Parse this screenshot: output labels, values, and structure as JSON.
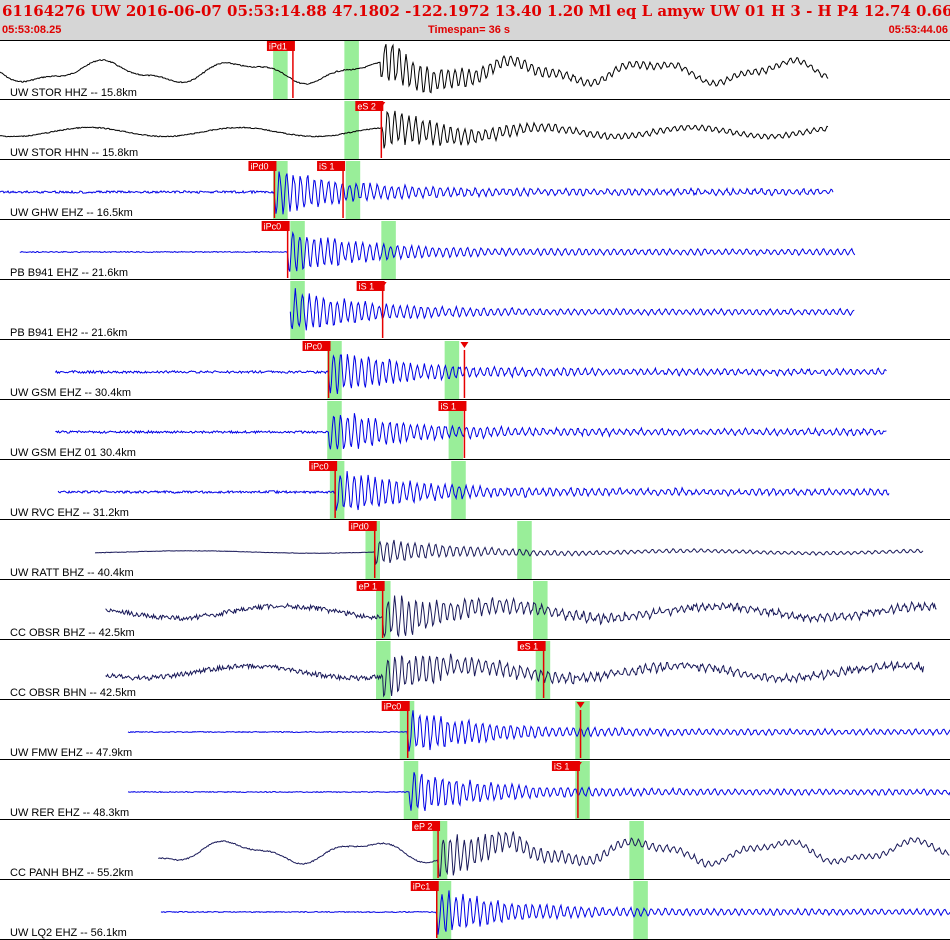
{
  "header": {
    "title": "61164276 UW 2016-06-07 05:53:14.88   47.1802 -122.1972  13.40  1.20 Ml  eq  L amyw     UW 01  H   3  - H P4   12.74  0.66",
    "time_start": "05:53:08.25",
    "time_end": "05:53:44.06",
    "timespan_label": "Timespan=  36 s"
  },
  "colors": {
    "blue_trace": "#0000e6",
    "dark_trace": "#000000",
    "navy_trace": "#1a1a5a",
    "pick": "#e60000",
    "window": "#99ee99",
    "header_bg": "#d6d6d6",
    "header_text": "#e00000"
  },
  "chart_data": {
    "type": "line",
    "xlim": [
      0,
      36
    ],
    "traces": [
      {
        "label": "UW STOR HHZ -- 15.8km",
        "color": "dark",
        "amp": 1.0,
        "start": 0.0,
        "end": 31.4,
        "bg": "swell",
        "window": [
          10.35,
          10.9
        ],
        "window2": [
          13.05,
          13.6
        ],
        "picks": [
          {
            "label": "iPd1",
            "x": 11.1
          }
        ],
        "event": 14.4
      },
      {
        "label": "UW STOR HHN -- 15.8km",
        "color": "dark",
        "amp": 0.9,
        "start": 0.0,
        "end": 31.4,
        "bg": "swell2",
        "window": [
          13.05,
          13.6
        ],
        "window2": null,
        "picks": [
          {
            "label": "eS 2",
            "x": 14.45,
            "marker": true
          }
        ],
        "event": 14.5
      },
      {
        "label": "UW GHW EHZ -- 16.5km",
        "color": "blue",
        "amp": 1.0,
        "start": 0.0,
        "end": 31.6,
        "bg": "noise",
        "window": [
          10.35,
          10.9
        ],
        "window2": [
          13.1,
          13.65
        ],
        "picks": [
          {
            "label": "iPd0",
            "x": 10.4
          },
          {
            "label": "iS 1",
            "x": 13.0
          }
        ],
        "event": 10.4
      },
      {
        "label": "PB B941 EHZ -- 21.6km",
        "color": "blue",
        "amp": 1.0,
        "start": 0.75,
        "end": 32.4,
        "bg": "flat",
        "window": [
          11.0,
          11.55
        ],
        "window2": [
          14.45,
          15.0
        ],
        "picks": [
          {
            "label": "iPc0",
            "x": 10.9
          }
        ],
        "event": 10.9
      },
      {
        "label": "PB B941 EH2 -- 21.6km",
        "color": "blue",
        "amp": 1.0,
        "start": 11.0,
        "end": 32.4,
        "bg": "flat",
        "window": [
          11.0,
          11.55
        ],
        "window2": null,
        "picks": [
          {
            "label": "iS 1",
            "x": 14.5,
            "marker": true
          }
        ],
        "event": 11.0
      },
      {
        "label": "UW GSM EHZ -- 30.4km",
        "color": "blue",
        "amp": 1.0,
        "start": 2.1,
        "end": 33.6,
        "bg": "noise2",
        "window": [
          12.4,
          12.95
        ],
        "window2": [
          16.85,
          17.4
        ],
        "picks": [
          {
            "label": "iPc0",
            "x": 12.45
          },
          {
            "label": "",
            "x": 17.6,
            "marker": true
          }
        ],
        "event": 12.45
      },
      {
        "label": "UW GSM EHZ 01 30.4km",
        "color": "blue",
        "amp": 1.0,
        "start": 2.1,
        "end": 33.6,
        "bg": "noise2",
        "window": [
          12.4,
          12.95
        ],
        "window2": [
          17.0,
          17.55
        ],
        "picks": [
          {
            "label": "iS 1",
            "x": 17.6
          }
        ],
        "event": 12.45
      },
      {
        "label": "UW RVC EHZ -- 31.2km",
        "color": "blue",
        "amp": 1.0,
        "start": 2.2,
        "end": 33.7,
        "bg": "noise",
        "window": [
          12.5,
          13.05
        ],
        "window2": [
          17.1,
          17.65
        ],
        "picks": [
          {
            "label": "iPc0",
            "x": 12.7
          }
        ],
        "event": 12.7
      },
      {
        "label": "UW RATT BHZ -- 40.4km",
        "color": "navy",
        "amp": 0.6,
        "start": 3.6,
        "end": 35.0,
        "bg": "smooth",
        "window": [
          13.85,
          14.4
        ],
        "window2": [
          19.6,
          20.15
        ],
        "picks": [
          {
            "label": "iPd0",
            "x": 14.2
          }
        ],
        "event": 14.2
      },
      {
        "label": "CC OBSR BHZ -- 42.5km",
        "color": "navy",
        "amp": 1.0,
        "start": 4.0,
        "end": 35.5,
        "bg": "rough",
        "window": [
          14.25,
          14.8
        ],
        "window2": [
          20.2,
          20.75
        ],
        "picks": [
          {
            "label": "eP 1",
            "x": 14.5
          }
        ],
        "event": 14.5
      },
      {
        "label": "CC OBSR BHN -- 42.5km",
        "color": "navy",
        "amp": 1.0,
        "start": 4.0,
        "end": 35.0,
        "bg": "rough",
        "window": [
          14.25,
          14.8
        ],
        "window2": [
          20.3,
          20.85
        ],
        "picks": [
          {
            "label": "eS 1",
            "x": 20.6
          }
        ],
        "event": 14.5
      },
      {
        "label": "UW FMW EHZ -- 47.9km",
        "color": "blue",
        "amp": 1.0,
        "start": 4.85,
        "end": 36.2,
        "bg": "flat",
        "window": [
          15.15,
          15.7
        ],
        "window2": [
          21.8,
          22.35
        ],
        "picks": [
          {
            "label": "iPc0",
            "x": 15.45
          },
          {
            "label": "",
            "x": 22.0,
            "marker": true
          }
        ],
        "event": 15.45
      },
      {
        "label": "UW RER EHZ -- 48.3km",
        "color": "blue",
        "amp": 1.0,
        "start": 4.85,
        "end": 36.2,
        "bg": "flat",
        "window": [
          15.3,
          15.85
        ],
        "window2": [
          21.8,
          22.35
        ],
        "picks": [
          {
            "label": "iS 1",
            "x": 21.9,
            "marker": true
          }
        ],
        "event": 15.5
      },
      {
        "label": "CC PANH BHZ -- 55.2km",
        "color": "navy",
        "amp": 1.0,
        "start": 6.0,
        "end": 37.5,
        "bg": "swell",
        "window": [
          16.4,
          16.95
        ],
        "window2": [
          23.85,
          24.4
        ],
        "picks": [
          {
            "label": "eP 2",
            "x": 16.6
          }
        ],
        "event": 16.6
      },
      {
        "label": "UW LQ2 EHZ -- 56.1km",
        "color": "blue",
        "amp": 1.0,
        "start": 6.1,
        "end": 37.5,
        "bg": "flat",
        "window": [
          16.55,
          17.1
        ],
        "window2": [
          24.0,
          24.55
        ],
        "picks": [
          {
            "label": "iPc1",
            "x": 16.55
          }
        ],
        "event": 16.55
      }
    ]
  }
}
